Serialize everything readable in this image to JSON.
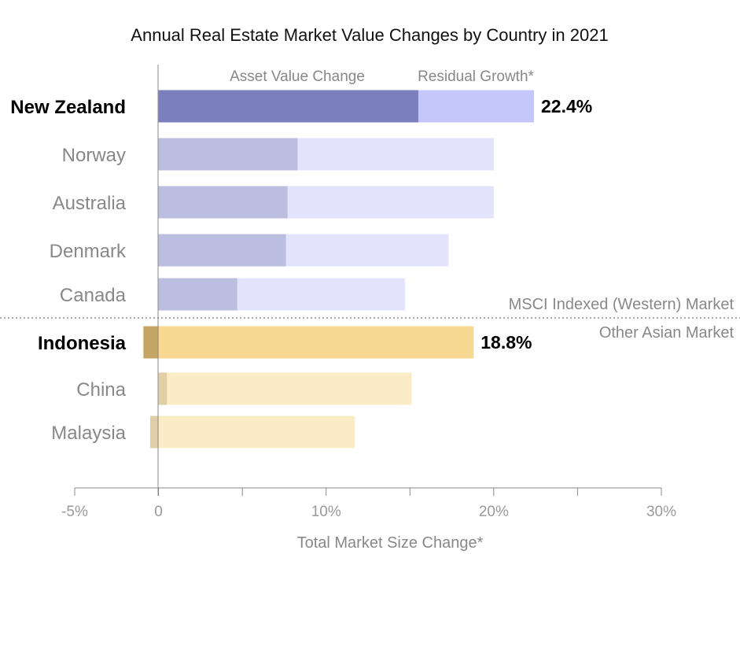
{
  "chart_data": {
    "type": "bar",
    "orientation": "horizontal",
    "stacked": true,
    "title": "Annual Real Estate Market Value Changes by Country in 2021",
    "xlabel": "Total Market Size Change*",
    "ylabel": "",
    "xlim": [
      -5,
      30
    ],
    "xticks": [
      -5,
      0,
      10,
      20,
      30
    ],
    "xtick_labels": [
      "-5%",
      "0",
      "10%",
      "20%",
      "30%"
    ],
    "minor_ticks": [
      5,
      15,
      25
    ],
    "grid": false,
    "legend_position": "top",
    "legend": [
      {
        "name": "Asset Value Change"
      },
      {
        "name": "Residual Growth*"
      }
    ],
    "groups": [
      {
        "name": "MSCI Indexed (Western) Market",
        "categories": [
          "New Zealand",
          "Norway",
          "Australia",
          "Denmark",
          "Canada"
        ]
      },
      {
        "name": "Other Asian Market",
        "categories": [
          "Indonesia",
          "China",
          "Malaysia"
        ]
      }
    ],
    "categories": [
      "New Zealand",
      "Norway",
      "Australia",
      "Denmark",
      "Canada",
      "Indonesia",
      "China",
      "Malaysia"
    ],
    "highlighted": [
      "New Zealand",
      "Indonesia"
    ],
    "series": [
      {
        "name": "Asset Value Change",
        "values": [
          15.5,
          8.3,
          7.7,
          7.6,
          4.7,
          -0.9,
          0.5,
          -0.5
        ]
      },
      {
        "name": "Residual Growth*",
        "values": [
          6.9,
          11.7,
          12.3,
          9.7,
          10.0,
          19.7,
          14.6,
          12.2
        ]
      }
    ],
    "totals": [
      22.4,
      20.0,
      20.0,
      17.3,
      14.7,
      18.8,
      15.1,
      11.7
    ],
    "data_labels": [
      {
        "category": "New Zealand",
        "text": "22.4%"
      },
      {
        "category": "Indonesia",
        "text": "18.8%"
      }
    ],
    "colors": {
      "western_asset_highlight": "#7b7fbd",
      "western_residual_highlight": "#c5c7fa",
      "western_asset": "#bcbedf",
      "western_residual": "#e3e4fb",
      "asian_asset_highlight": "#c4a564",
      "asian_residual_highlight": "#f7d992",
      "asian_asset": "#e0cfa6",
      "asian_residual": "#fbecc8",
      "axis": "#888888",
      "separator": "#555555"
    }
  }
}
